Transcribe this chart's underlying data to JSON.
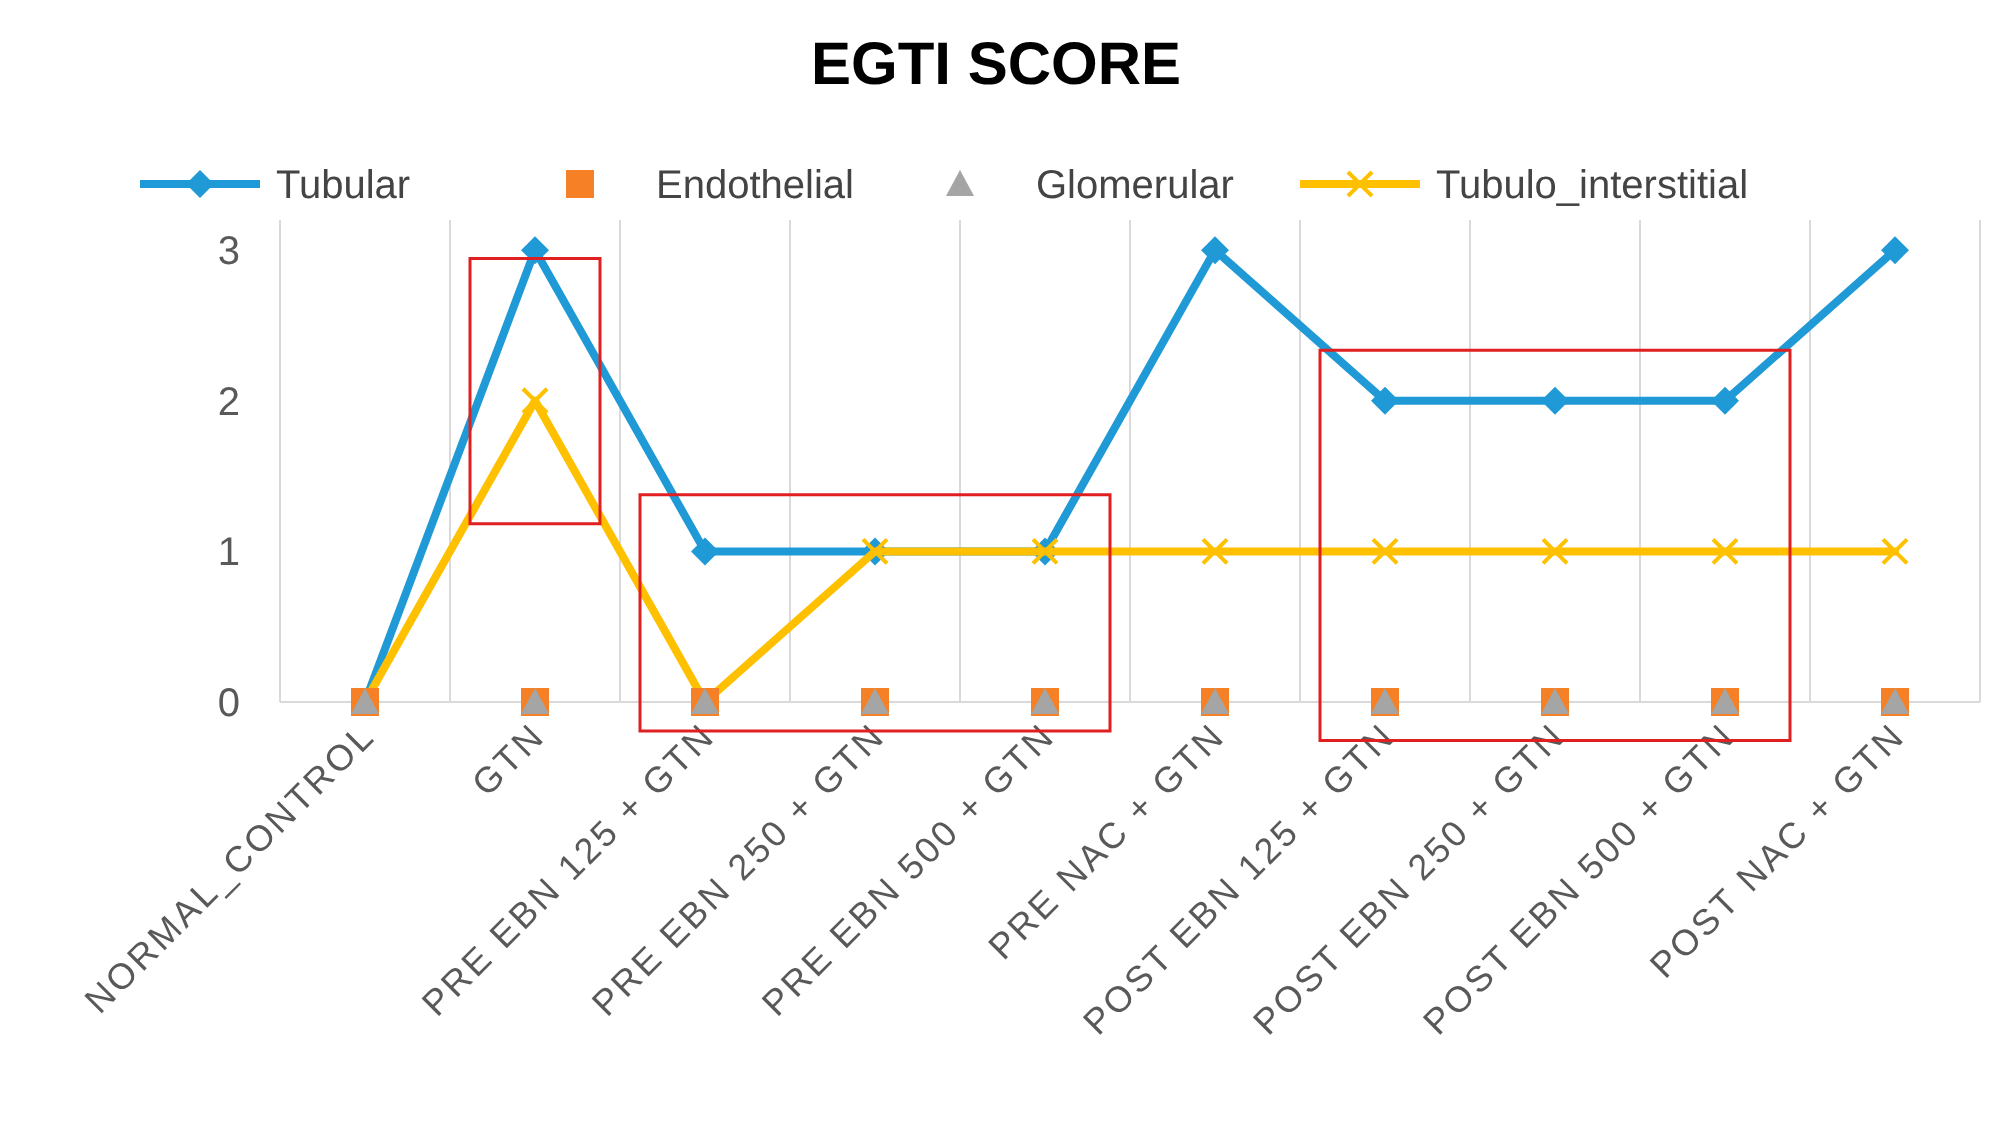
{
  "chart_data": {
    "type": "line",
    "title": "EGTI SCORE",
    "categories": [
      "NORMAL_CONTROL",
      "GTN",
      "PRE EBN 125 + GTN",
      "PRE EBN 250 + GTN",
      "PRE EBN 500 + GTN",
      "PRE NAC + GTN",
      "POST EBN 125 + GTN",
      "POST EBN 250 + GTN",
      "POST EBN 500 + GTN",
      "POST NAC + GTN"
    ],
    "series": [
      {
        "name": "Tubular",
        "color": "#1f9ad6",
        "marker": "diamond",
        "values": [
          0,
          3,
          1,
          1,
          1,
          3,
          2,
          2,
          2,
          3
        ]
      },
      {
        "name": "Endothelial",
        "color": "#f58025",
        "type": "scatter",
        "marker": "square",
        "values": [
          0,
          0,
          0,
          0,
          0,
          0,
          0,
          0,
          0,
          0
        ]
      },
      {
        "name": "Glomerular",
        "color": "#a5a5a5",
        "type": "scatter",
        "marker": "triangle",
        "values": [
          0,
          0,
          0,
          0,
          0,
          0,
          0,
          0,
          0,
          0
        ]
      },
      {
        "name": "Tubulo_interstitial",
        "color": "#ffc000",
        "marker": "cross",
        "values": [
          0,
          2,
          0,
          1,
          1,
          1,
          1,
          1,
          1,
          1
        ]
      }
    ],
    "ylim": [
      0,
      3.2
    ],
    "yticks": [
      0,
      1,
      2,
      3
    ],
    "grid": "x",
    "legend": "top"
  }
}
